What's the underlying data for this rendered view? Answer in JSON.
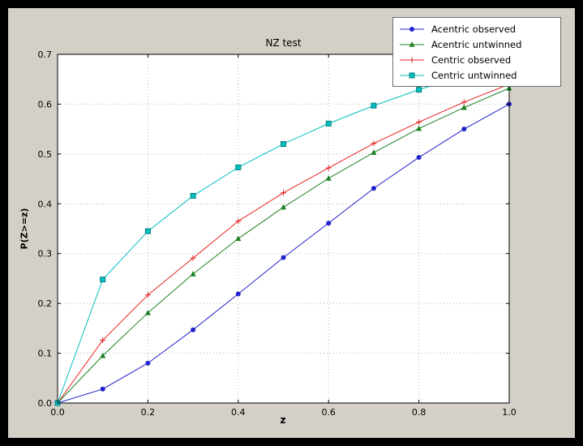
{
  "figure": {
    "background": "#d4d0c8",
    "outer_background": "#000000"
  },
  "chart_data": {
    "type": "line",
    "title": "NZ test",
    "xlabel": "z",
    "ylabel": "P(Z>=z)",
    "xlim": [
      0.0,
      1.0
    ],
    "ylim": [
      0.0,
      0.7
    ],
    "xticks": [
      0.0,
      0.2,
      0.4,
      0.6,
      0.8,
      1.0
    ],
    "yticks": [
      0.0,
      0.1,
      0.2,
      0.3,
      0.4,
      0.5,
      0.6,
      0.7
    ],
    "grid": true,
    "grid_style": "dotted",
    "legend_position": "upper right",
    "x": [
      0.0,
      0.1,
      0.2,
      0.3,
      0.4,
      0.5,
      0.6,
      0.7,
      0.8,
      0.9,
      1.0
    ],
    "series": [
      {
        "name": "Acentric observed",
        "color": "#2222cc",
        "marker": "circle",
        "values": [
          0.0,
          0.028,
          0.08,
          0.147,
          0.219,
          0.292,
          0.361,
          0.431,
          0.493,
          0.55,
          0.6
        ]
      },
      {
        "name": "Acentric untwinned",
        "color": "#1a8022",
        "marker": "triangle",
        "values": [
          0.0,
          0.095,
          0.181,
          0.259,
          0.33,
          0.393,
          0.451,
          0.503,
          0.551,
          0.593,
          0.632
        ]
      },
      {
        "name": "Centric observed",
        "color": "#e62222",
        "marker": "plus",
        "values": [
          0.0,
          0.126,
          0.217,
          0.291,
          0.365,
          0.422,
          0.472,
          0.521,
          0.564,
          0.604,
          0.64
        ]
      },
      {
        "name": "Centric untwinned",
        "color": "#00bfbf",
        "marker": "square",
        "marker_edge": "#008080",
        "values": [
          0.0,
          0.248,
          0.345,
          0.416,
          0.473,
          0.52,
          0.561,
          0.597,
          0.629,
          0.657,
          0.683
        ]
      }
    ]
  }
}
